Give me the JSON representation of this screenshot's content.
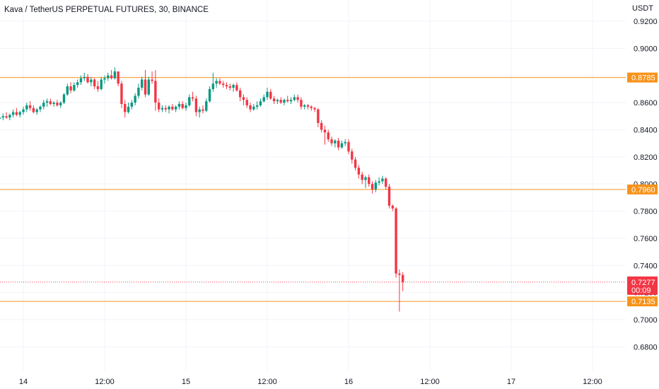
{
  "chart_data": {
    "type": "candlestick",
    "title": "Kava / TetherUS PERPETUAL FUTURES, 30, BINANCE",
    "currency_label": "USDT",
    "ylim": [
      0.67,
      0.925
    ],
    "y_ticks": [
      "0.9200",
      "0.9000",
      "0.8800",
      "0.8600",
      "0.8400",
      "0.8200",
      "0.8000",
      "0.7800",
      "0.7600",
      "0.7400",
      "0.7200",
      "0.7000",
      "0.6800"
    ],
    "x_ticks": [
      {
        "label": "14",
        "t": 0
      },
      {
        "label": "12:00",
        "t": 24
      },
      {
        "label": "15",
        "t": 48
      },
      {
        "label": "12:00",
        "t": 72
      },
      {
        "label": "16",
        "t": 96
      },
      {
        "label": "12:00",
        "t": 120
      },
      {
        "label": "17",
        "t": 144
      },
      {
        "label": "12:00",
        "t": 168
      }
    ],
    "grid": true,
    "horizontal_levels": [
      {
        "value": 0.8785,
        "label": "0.8785",
        "color": "#f7931a"
      },
      {
        "value": 0.796,
        "label": "0.7960",
        "color": "#f7931a"
      },
      {
        "value": 0.7135,
        "label": "0.7135",
        "color": "#f7931a"
      }
    ],
    "last_price": {
      "value": 0.7277,
      "label": "0.7277",
      "countdown": "00:09",
      "color": "#f23645"
    },
    "colors": {
      "up": "#089981",
      "down": "#f23645",
      "grid": "#f0f3fa"
    },
    "candles": [
      [
        -7,
        0.848,
        0.851,
        0.846,
        0.849
      ],
      [
        -6,
        0.849,
        0.852,
        0.847,
        0.85
      ],
      [
        -5,
        0.85,
        0.853,
        0.848,
        0.849
      ],
      [
        -4,
        0.849,
        0.852,
        0.847,
        0.851
      ],
      [
        -3,
        0.851,
        0.855,
        0.849,
        0.853
      ],
      [
        -2,
        0.853,
        0.856,
        0.85,
        0.851
      ],
      [
        -1,
        0.851,
        0.854,
        0.849,
        0.853
      ],
      [
        0,
        0.853,
        0.857,
        0.851,
        0.855
      ],
      [
        1,
        0.855,
        0.86,
        0.853,
        0.858
      ],
      [
        2,
        0.858,
        0.861,
        0.854,
        0.856
      ],
      [
        3,
        0.856,
        0.858,
        0.852,
        0.853
      ],
      [
        4,
        0.853,
        0.856,
        0.851,
        0.855
      ],
      [
        5,
        0.855,
        0.858,
        0.853,
        0.857
      ],
      [
        6,
        0.857,
        0.862,
        0.855,
        0.86
      ],
      [
        7,
        0.86,
        0.863,
        0.857,
        0.861
      ],
      [
        8,
        0.861,
        0.863,
        0.858,
        0.859
      ],
      [
        9,
        0.859,
        0.861,
        0.857,
        0.86
      ],
      [
        10,
        0.86,
        0.862,
        0.857,
        0.858
      ],
      [
        11,
        0.858,
        0.861,
        0.856,
        0.86
      ],
      [
        12,
        0.86,
        0.867,
        0.859,
        0.866
      ],
      [
        13,
        0.866,
        0.874,
        0.865,
        0.872
      ],
      [
        14,
        0.872,
        0.875,
        0.867,
        0.869
      ],
      [
        15,
        0.869,
        0.875,
        0.868,
        0.873
      ],
      [
        16,
        0.873,
        0.877,
        0.871,
        0.875
      ],
      [
        17,
        0.875,
        0.88,
        0.873,
        0.878
      ],
      [
        18,
        0.878,
        0.882,
        0.876,
        0.879
      ],
      [
        19,
        0.879,
        0.881,
        0.874,
        0.875
      ],
      [
        20,
        0.875,
        0.879,
        0.872,
        0.877
      ],
      [
        21,
        0.877,
        0.878,
        0.87,
        0.872
      ],
      [
        22,
        0.872,
        0.876,
        0.868,
        0.87
      ],
      [
        23,
        0.87,
        0.879,
        0.869,
        0.877
      ],
      [
        24,
        0.877,
        0.88,
        0.874,
        0.878
      ],
      [
        25,
        0.878,
        0.882,
        0.876,
        0.88
      ],
      [
        26,
        0.88,
        0.884,
        0.877,
        0.878
      ],
      [
        27,
        0.878,
        0.886,
        0.877,
        0.883
      ],
      [
        28,
        0.883,
        0.881,
        0.872,
        0.874
      ],
      [
        29,
        0.874,
        0.876,
        0.856,
        0.859
      ],
      [
        30,
        0.859,
        0.862,
        0.849,
        0.853
      ],
      [
        31,
        0.853,
        0.86,
        0.852,
        0.857
      ],
      [
        32,
        0.857,
        0.862,
        0.855,
        0.86
      ],
      [
        33,
        0.86,
        0.867,
        0.858,
        0.865
      ],
      [
        34,
        0.865,
        0.874,
        0.863,
        0.871
      ],
      [
        35,
        0.871,
        0.879,
        0.869,
        0.877
      ],
      [
        36,
        0.877,
        0.884,
        0.864,
        0.866
      ],
      [
        37,
        0.866,
        0.879,
        0.865,
        0.877
      ],
      [
        38,
        0.877,
        0.883,
        0.874,
        0.876
      ],
      [
        39,
        0.876,
        0.884,
        0.854,
        0.86
      ],
      [
        40,
        0.86,
        0.863,
        0.853,
        0.855
      ],
      [
        41,
        0.855,
        0.858,
        0.853,
        0.856
      ],
      [
        42,
        0.856,
        0.858,
        0.853,
        0.855
      ],
      [
        43,
        0.855,
        0.858,
        0.852,
        0.857
      ],
      [
        44,
        0.857,
        0.859,
        0.854,
        0.855
      ],
      [
        45,
        0.855,
        0.858,
        0.853,
        0.857
      ],
      [
        46,
        0.857,
        0.861,
        0.855,
        0.859
      ],
      [
        47,
        0.859,
        0.861,
        0.855,
        0.856
      ],
      [
        48,
        0.856,
        0.86,
        0.854,
        0.858
      ],
      [
        49,
        0.858,
        0.866,
        0.857,
        0.864
      ],
      [
        50,
        0.864,
        0.868,
        0.861,
        0.863
      ],
      [
        51,
        0.863,
        0.865,
        0.85,
        0.853
      ],
      [
        52,
        0.853,
        0.857,
        0.849,
        0.855
      ],
      [
        53,
        0.855,
        0.858,
        0.852,
        0.854
      ],
      [
        54,
        0.854,
        0.863,
        0.853,
        0.861
      ],
      [
        55,
        0.861,
        0.872,
        0.86,
        0.87
      ],
      [
        56,
        0.87,
        0.882,
        0.868,
        0.874
      ],
      [
        57,
        0.874,
        0.878,
        0.871,
        0.876
      ],
      [
        58,
        0.876,
        0.878,
        0.873,
        0.874
      ],
      [
        59,
        0.874,
        0.876,
        0.871,
        0.873
      ],
      [
        60,
        0.873,
        0.875,
        0.87,
        0.872
      ],
      [
        61,
        0.872,
        0.874,
        0.869,
        0.871
      ],
      [
        62,
        0.871,
        0.874,
        0.868,
        0.873
      ],
      [
        63,
        0.873,
        0.875,
        0.868,
        0.869
      ],
      [
        64,
        0.869,
        0.871,
        0.861,
        0.864
      ],
      [
        65,
        0.864,
        0.866,
        0.858,
        0.862
      ],
      [
        66,
        0.862,
        0.864,
        0.856,
        0.858
      ],
      [
        67,
        0.858,
        0.86,
        0.853,
        0.855
      ],
      [
        68,
        0.855,
        0.859,
        0.854,
        0.857
      ],
      [
        69,
        0.857,
        0.861,
        0.855,
        0.858
      ],
      [
        70,
        0.858,
        0.863,
        0.857,
        0.861
      ],
      [
        71,
        0.861,
        0.866,
        0.86,
        0.864
      ],
      [
        72,
        0.864,
        0.871,
        0.862,
        0.868
      ],
      [
        73,
        0.868,
        0.87,
        0.862,
        0.863
      ],
      [
        74,
        0.863,
        0.865,
        0.859,
        0.861
      ],
      [
        75,
        0.861,
        0.863,
        0.859,
        0.862
      ],
      [
        76,
        0.862,
        0.864,
        0.859,
        0.86
      ],
      [
        77,
        0.86,
        0.863,
        0.858,
        0.862
      ],
      [
        78,
        0.862,
        0.865,
        0.86,
        0.861
      ],
      [
        79,
        0.861,
        0.864,
        0.859,
        0.862
      ],
      [
        80,
        0.862,
        0.866,
        0.861,
        0.864
      ],
      [
        81,
        0.864,
        0.866,
        0.86,
        0.862
      ],
      [
        82,
        0.862,
        0.864,
        0.855,
        0.857
      ],
      [
        83,
        0.857,
        0.859,
        0.855,
        0.858
      ],
      [
        84,
        0.858,
        0.859,
        0.855,
        0.857
      ],
      [
        85,
        0.857,
        0.858,
        0.854,
        0.856
      ],
      [
        86,
        0.856,
        0.857,
        0.853,
        0.855
      ],
      [
        87,
        0.855,
        0.856,
        0.842,
        0.845
      ],
      [
        88,
        0.845,
        0.847,
        0.838,
        0.84
      ],
      [
        89,
        0.84,
        0.843,
        0.829,
        0.838
      ],
      [
        90,
        0.838,
        0.84,
        0.831,
        0.833
      ],
      [
        91,
        0.833,
        0.835,
        0.828,
        0.83
      ],
      [
        92,
        0.83,
        0.833,
        0.827,
        0.832
      ],
      [
        93,
        0.832,
        0.834,
        0.825,
        0.827
      ],
      [
        94,
        0.827,
        0.832,
        0.826,
        0.83
      ],
      [
        95,
        0.83,
        0.833,
        0.828,
        0.831
      ],
      [
        96,
        0.831,
        0.833,
        0.822,
        0.824
      ],
      [
        97,
        0.824,
        0.826,
        0.815,
        0.818
      ],
      [
        98,
        0.818,
        0.82,
        0.81,
        0.812
      ],
      [
        99,
        0.812,
        0.814,
        0.804,
        0.807
      ],
      [
        100,
        0.807,
        0.809,
        0.8,
        0.803
      ],
      [
        101,
        0.803,
        0.806,
        0.797,
        0.805
      ],
      [
        102,
        0.805,
        0.807,
        0.798,
        0.8
      ],
      [
        103,
        0.8,
        0.802,
        0.793,
        0.796
      ],
      [
        104,
        0.796,
        0.803,
        0.794,
        0.801
      ],
      [
        105,
        0.801,
        0.805,
        0.799,
        0.802
      ],
      [
        106,
        0.802,
        0.806,
        0.8,
        0.804
      ],
      [
        107,
        0.804,
        0.805,
        0.796,
        0.798
      ],
      [
        108,
        0.798,
        0.8,
        0.782,
        0.784
      ],
      [
        109,
        0.784,
        0.785,
        0.78,
        0.782
      ],
      [
        110,
        0.782,
        0.783,
        0.731,
        0.734
      ],
      [
        111,
        0.734,
        0.737,
        0.706,
        0.733
      ],
      [
        112,
        0.733,
        0.735,
        0.721,
        0.7277
      ]
    ]
  }
}
